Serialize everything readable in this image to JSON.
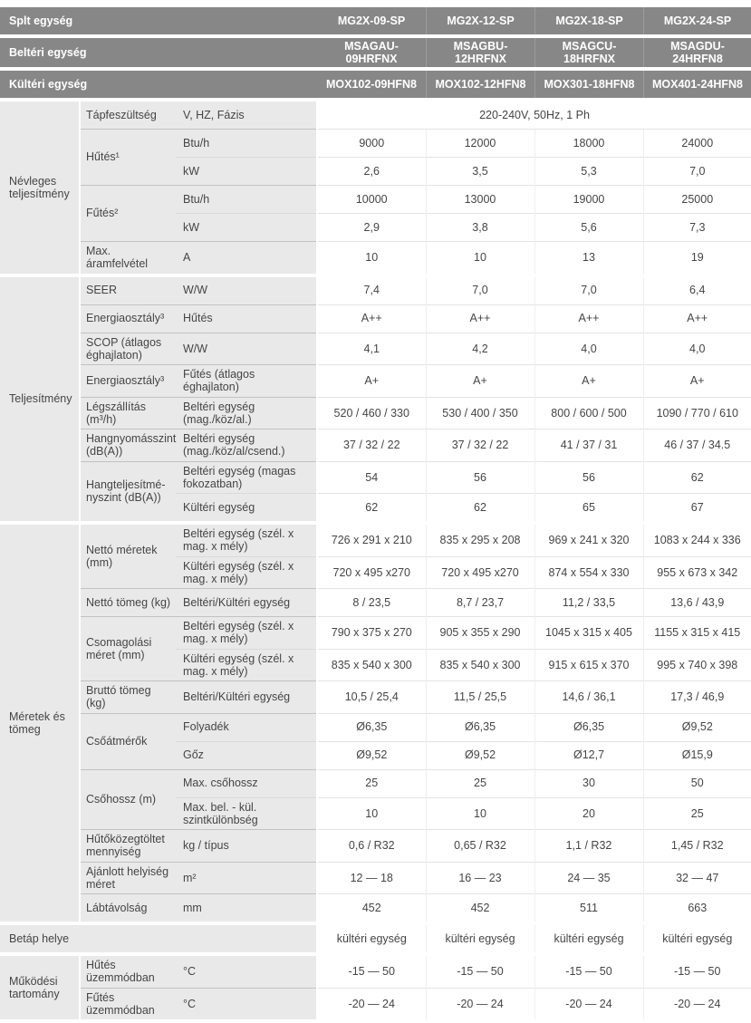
{
  "colors": {
    "header_bg": "#878787",
    "header_text": "#ffffff",
    "label_bg": "#e9e9e9",
    "body_text": "#454545"
  },
  "header_rows": [
    {
      "label": "Splt egység",
      "values": [
        "MG2X-09-SP",
        "MG2X-12-SP",
        "MG2X-18-SP",
        "MG2X-24-SP"
      ]
    },
    {
      "label": "Beltéri egység",
      "values": [
        "MSAGAU-09HRFNX",
        "MSAGBU-12HRFNX",
        "MSAGCU-18HRFNX",
        "MSAGDU-24HRFN8"
      ]
    },
    {
      "label": "Kültéri egység",
      "values": [
        "MOX102-09HFN8",
        "MOX102-12HFN8",
        "MOX301-18HFN8",
        "MOX401-24HFN8"
      ]
    }
  ],
  "sections": [
    {
      "name": "Névleges teljesítmény",
      "groups": [
        {
          "label": "Tápfeszültség",
          "rows": [
            {
              "sub": "V, HZ, Fázis",
              "span": "220-240V, 50Hz, 1 Ph"
            }
          ]
        },
        {
          "label": "Hűtés¹",
          "rows": [
            {
              "sub": "Btu/h",
              "values": [
                "9000",
                "12000",
                "18000",
                "24000"
              ]
            },
            {
              "sub": "kW",
              "values": [
                "2,6",
                "3,5",
                "5,3",
                "7,0"
              ]
            }
          ]
        },
        {
          "label": "Fűtés²",
          "rows": [
            {
              "sub": "Btu/h",
              "values": [
                "10000",
                "13000",
                "19000",
                "25000"
              ]
            },
            {
              "sub": "kW",
              "values": [
                "2,9",
                "3,8",
                "5,6",
                "7,3"
              ]
            }
          ]
        },
        {
          "label": "Max. áramfelvétel",
          "rows": [
            {
              "sub": "A",
              "values": [
                "10",
                "10",
                "13",
                "19"
              ]
            }
          ]
        }
      ]
    },
    {
      "name": "Teljesítmény",
      "groups": [
        {
          "label": "SEER",
          "rows": [
            {
              "sub": "W/W",
              "values": [
                "7,4",
                "7,0",
                "7,0",
                "6,4"
              ]
            }
          ]
        },
        {
          "label": "Energiaosztály³",
          "rows": [
            {
              "sub": "Hűtés",
              "values": [
                "A++",
                "A++",
                "A++",
                "A++"
              ]
            }
          ]
        },
        {
          "label": "SCOP (átlagos éghajlaton)",
          "rows": [
            {
              "sub": "W/W",
              "values": [
                "4,1",
                "4,2",
                "4,0",
                "4,0"
              ]
            }
          ]
        },
        {
          "label": "Energiaosztály³",
          "rows": [
            {
              "sub": "Fűtés (átlagos éghajlaton)",
              "values": [
                "A+",
                "A+",
                "A+",
                "A+"
              ]
            }
          ]
        },
        {
          "label": "Légszállítás (m³/h)",
          "rows": [
            {
              "sub": "Beltéri egység (mag./köz/al.)",
              "values": [
                "520 / 460 / 330",
                "530 / 400 / 350",
                "800 / 600 / 500",
                "1090 / 770 / 610"
              ]
            }
          ]
        },
        {
          "label": "Hangnyomásszint (dB(A))",
          "rows": [
            {
              "sub": "Beltéri egység (mag./köz/al/csend.)",
              "values": [
                "37 / 32 / 22",
                "37 / 32 / 22",
                "41 / 37 / 31",
                "46 / 37 / 34.5"
              ]
            }
          ]
        },
        {
          "label": "Hangteljesítmé- nyszint (dB(A))",
          "rows": [
            {
              "sub": "Beltéri egység (magas fokozatban)",
              "values": [
                "54",
                "56",
                "56",
                "62"
              ]
            },
            {
              "sub": "Kültéri egység",
              "values": [
                "62",
                "62",
                "65",
                "67"
              ]
            }
          ]
        }
      ]
    },
    {
      "name": "Méretek és tömeg",
      "groups": [
        {
          "label": "Nettó méretek (mm)",
          "rows": [
            {
              "sub": "Beltéri egység (szél. x mag. x mély)",
              "values": [
                "726 x 291 x 210",
                "835 x 295 x 208",
                "969 x 241 x 320",
                "1083 x 244 x 336"
              ]
            },
            {
              "sub": "Kültéri egység (szél. x mag. x mély)",
              "values": [
                "720 x 495 x270",
                "720 x 495 x270",
                "874 x 554 x 330",
                "955 x 673 x 342"
              ]
            }
          ]
        },
        {
          "label": "Nettó tömeg (kg)",
          "rows": [
            {
              "sub": "Beltéri/Kültéri egység",
              "values": [
                "8 / 23,5",
                "8,7 / 23,7",
                "11,2 / 33,5",
                "13,6 / 43,9"
              ]
            }
          ]
        },
        {
          "label": "Csomagolási méret (mm)",
          "rows": [
            {
              "sub": "Beltéri egység (szél. x mag. x mély)",
              "values": [
                "790 x 375 x 270",
                "905 x 355 x 290",
                "1045 x 315 x 405",
                "1155 x 315 x 415"
              ]
            },
            {
              "sub": "Kültéri egység (szél. x mag. x mély)",
              "values": [
                "835 x 540 x 300",
                "835 x 540 x 300",
                "915 x 615 x 370",
                "995 x 740 x 398"
              ]
            }
          ]
        },
        {
          "label": "Bruttó tömeg (kg)",
          "rows": [
            {
              "sub": "Beltéri/Kültéri egység",
              "values": [
                "10,5 / 25,4",
                "11,5 / 25,5",
                "14,6 / 36,1",
                "17,3 / 46,9"
              ]
            }
          ]
        },
        {
          "label": "Csőátmérők",
          "rows": [
            {
              "sub": "Folyadék",
              "values": [
                "Ø6,35",
                "Ø6,35",
                "Ø6,35",
                "Ø9,52"
              ]
            },
            {
              "sub": "Gőz",
              "values": [
                "Ø9,52",
                "Ø9,52",
                "Ø12,7",
                "Ø15,9"
              ]
            }
          ]
        },
        {
          "label": "Csőhossz (m)",
          "rows": [
            {
              "sub": "Max. csőhossz",
              "values": [
                "25",
                "25",
                "30",
                "50"
              ]
            },
            {
              "sub": "Max. bel. - kül. szintkülönbség",
              "values": [
                "10",
                "10",
                "20",
                "25"
              ]
            }
          ]
        },
        {
          "label": "Hűtőközegtöltet mennyiség",
          "rows": [
            {
              "sub": "kg / típus",
              "values": [
                "0,6 / R32",
                "0,65 / R32",
                "1,1 / R32",
                "1,45 / R32"
              ]
            }
          ]
        },
        {
          "label": "Ajánlott helyiség méret",
          "rows": [
            {
              "sub": "m²",
              "values": [
                "12 — 18",
                "16 — 23",
                "24 — 35",
                "32 — 47"
              ]
            }
          ]
        },
        {
          "label": "Lábtávolság",
          "rows": [
            {
              "sub": "mm",
              "values": [
                "452",
                "452",
                "511",
                "663"
              ]
            }
          ]
        }
      ]
    },
    {
      "name": "Betáp helye",
      "wide_label": true,
      "groups": [
        {
          "label": "",
          "rows": [
            {
              "sub": "",
              "values": [
                "kültéri egység",
                "kültéri egység",
                "kültéri egység",
                "kültéri egység"
              ]
            }
          ]
        }
      ]
    },
    {
      "name": "Működési tartomány",
      "groups": [
        {
          "label": "Hűtés üzemmódban",
          "rows": [
            {
              "sub": "°C",
              "values": [
                "-15 — 50",
                "-15 — 50",
                "-15 — 50",
                "-15 — 50"
              ]
            }
          ]
        },
        {
          "label": "Fűtés üzemmódban",
          "rows": [
            {
              "sub": "°C",
              "values": [
                "-20 — 24",
                "-20 — 24",
                "-20 — 24",
                "-20 — 24"
              ]
            }
          ]
        }
      ]
    }
  ]
}
